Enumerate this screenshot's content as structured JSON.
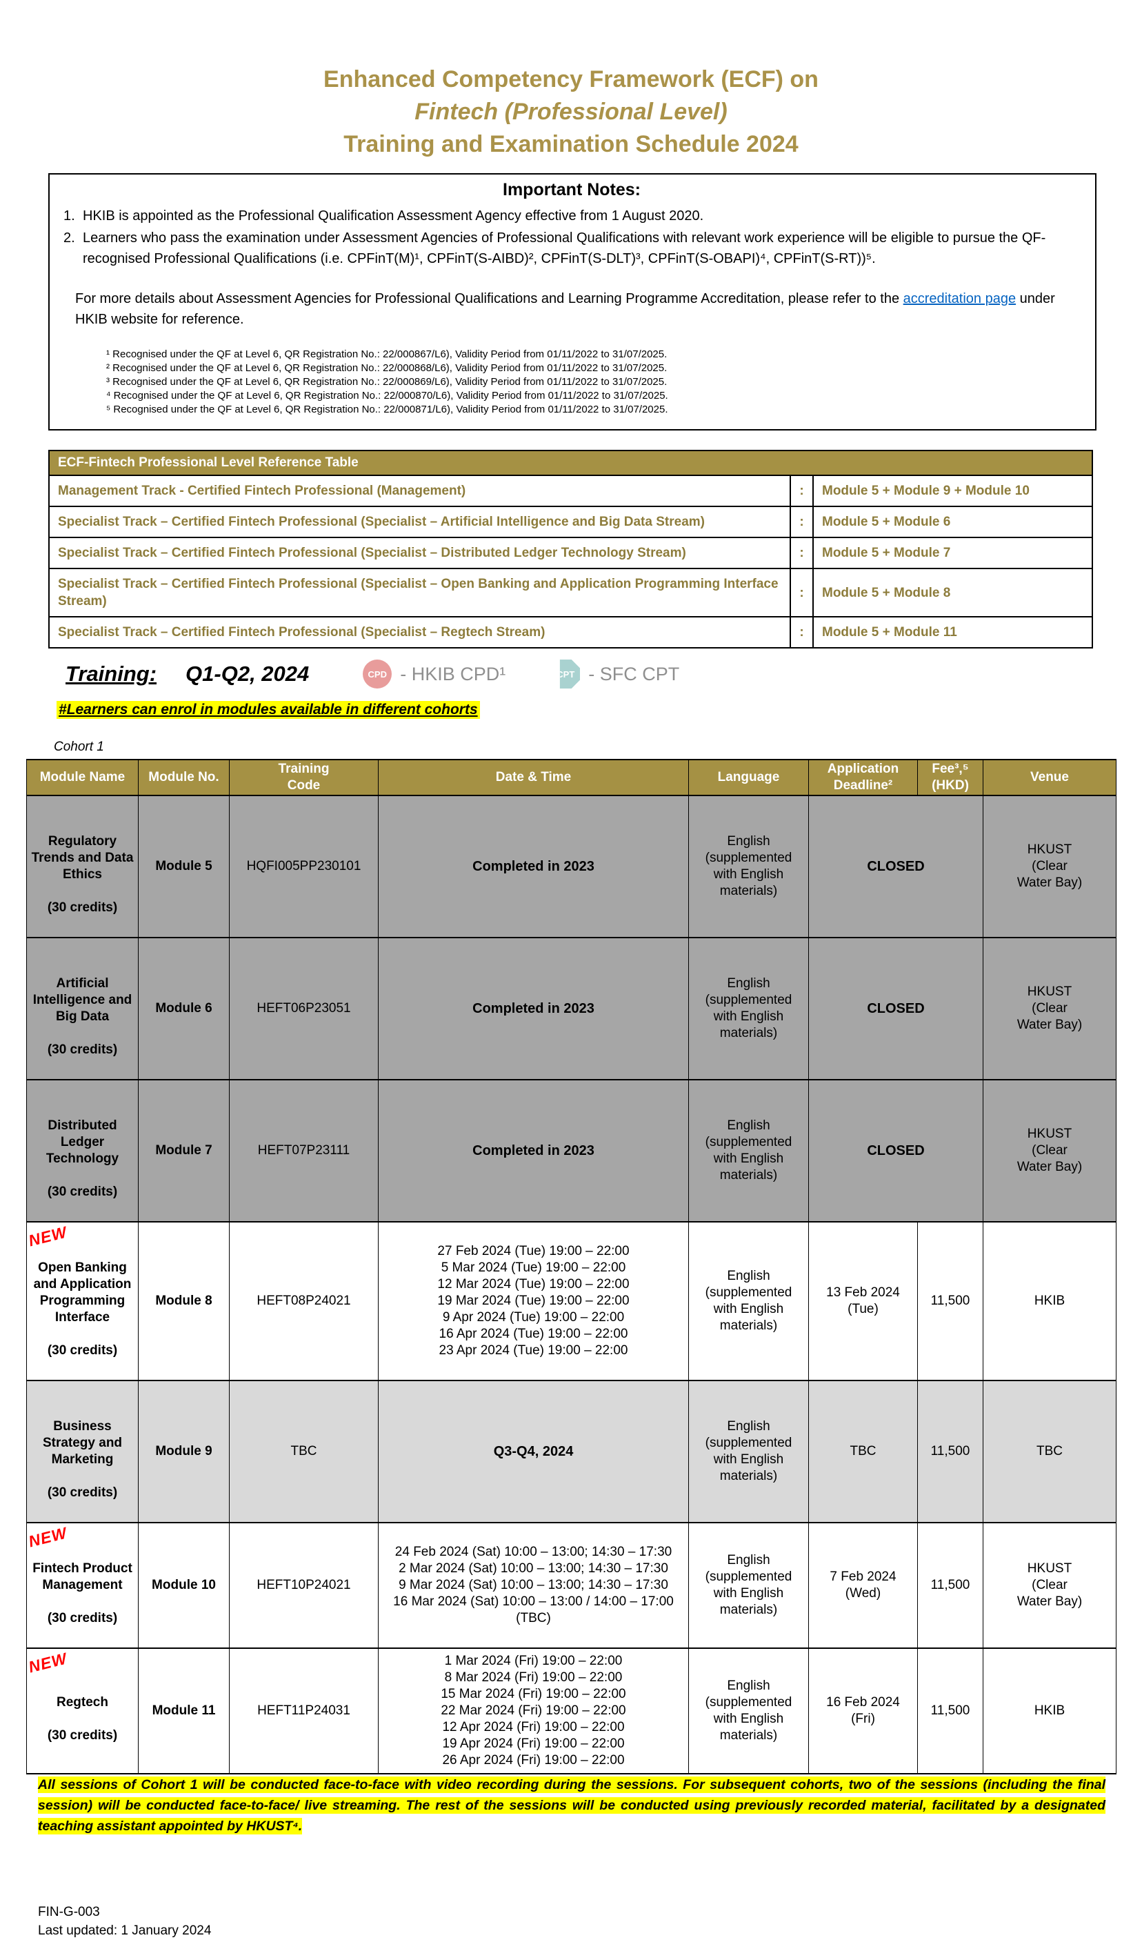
{
  "title": {
    "line1": "Enhanced Competency Framework (ECF) on",
    "line2": "Fintech (Professional Level)",
    "line3": "Training and Examination Schedule 2024"
  },
  "important_notes": {
    "heading": "Important Notes:",
    "items": [
      {
        "num": "1.",
        "text": "HKIB is appointed as the Professional Qualification Assessment Agency effective from 1 August 2020."
      },
      {
        "num": "2.",
        "text": "Learners who pass the examination under Assessment Agencies of Professional Qualifications with relevant work experience will be eligible to pursue the QF-recognised Professional Qualifications (i.e. CPFinT(M)¹, CPFinT(S-AIBD)², CPFinT(S-DLT)³, CPFinT(S-OBAPI)⁴, CPFinT(S-RT))⁵."
      }
    ],
    "more_prefix": "For more details about Assessment Agencies for Professional Qualifications and Learning Programme Accreditation, please refer to the",
    "link_text": "accreditation page",
    "more_suffix": " under HKIB website for reference.",
    "footnotes": [
      {
        "text": "¹ Recognised under the QF at Level 6, QR Registration No.: 22/000867/L6), Validity Period from 01/11/2022 to 31/07/2025."
      },
      {
        "text": "² Recognised under the QF at Level 6, QR Registration No.: 22/000868/L6), Validity Period from 01/11/2022 to 31/07/2025."
      },
      {
        "text": "³ Recognised under the QF at Level 6, QR Registration No.: 22/000869/L6), Validity Period from 01/11/2022 to 31/07/2025."
      },
      {
        "text": "⁴ Recognised under the QF at Level 6, QR Registration No.: 22/000870/L6), Validity Period from 01/11/2022 to 31/07/2025."
      },
      {
        "text": "⁵ Recognised under the QF at Level 6, QR Registration No.: 22/000871/L6), Validity Period from 01/11/2022 to 31/07/2025."
      }
    ]
  },
  "reference_table": {
    "header": "ECF-Fintech Professional Level Reference Table",
    "rows": [
      {
        "track": "Management Track - Certified Fintech Professional (Management)",
        "colon": ":",
        "modules": "Module 5 + Module 9 + Module 10"
      },
      {
        "track": "Specialist Track – Certified Fintech Professional (Specialist – Artificial Intelligence and Big Data Stream)",
        "colon": ":",
        "modules": "Module 5 + Module 6"
      },
      {
        "track": "Specialist Track – Certified Fintech Professional (Specialist – Distributed Ledger Technology Stream)",
        "colon": ":",
        "modules": "Module 5 + Module 7"
      },
      {
        "track": "Specialist Track – Certified Fintech Professional (Specialist – Open Banking and Application Programming Interface Stream)",
        "colon": ":",
        "modules": "Module 5 + Module 8"
      },
      {
        "track": "Specialist Track – Certified Fintech Professional (Specialist – Regtech Stream)",
        "colon": ":",
        "modules": "Module 5 + Module 11"
      }
    ]
  },
  "training_section": {
    "heading": "Training:",
    "period": "Q1-Q2, 2024",
    "cpd_badge": "CPD",
    "cpd_label": "- HKIB CPD¹",
    "cpt_badge": "CPT",
    "cpt_label": "- SFC CPT",
    "enrol_note": "#Learners can enrol in modules available in different cohorts",
    "cohort_label": "Cohort 1"
  },
  "cohort_table": {
    "columns": [
      {
        "label": "Module Name"
      },
      {
        "label": "Module No."
      },
      {
        "label": "Training\nCode"
      },
      {
        "label": "Date & Time"
      },
      {
        "label": "Language"
      },
      {
        "label": "Application\nDeadline²"
      },
      {
        "label": "Fee³,⁵\n(HKD)"
      },
      {
        "label": "Venue"
      }
    ],
    "rows": [
      {
        "row_class": "row-gray h-r1",
        "is_new": false,
        "name": "Regulatory\nTrends and Data\nEthics",
        "credits": "(30 credits)",
        "module_no": "Module 5",
        "code": "HQFI005PP230101",
        "schedule": "Completed in 2023",
        "schedule_bold": true,
        "language": "English\n(supplemented\nwith English\nmaterials)",
        "deadline": "CLOSED",
        "deadline_bold": true,
        "deadline_span": "2",
        "has_fee": false,
        "venue": "HKUST\n(Clear\nWater Bay)"
      },
      {
        "row_class": "row-gray h-r2",
        "is_new": false,
        "name": "Artificial\nIntelligence and\nBig Data",
        "credits": "(30 credits)",
        "module_no": "Module 6",
        "code": "HEFT06P23051",
        "schedule": "Completed in 2023",
        "schedule_bold": true,
        "language": "English\n(supplemented\nwith English\nmaterials)",
        "deadline": "CLOSED",
        "deadline_bold": true,
        "deadline_span": "2",
        "has_fee": false,
        "venue": "HKUST\n(Clear\nWater Bay)"
      },
      {
        "row_class": "row-gray h-r3",
        "is_new": false,
        "name": "Distributed\nLedger\nTechnology",
        "credits": "(30 credits)",
        "module_no": "Module 7",
        "code": "HEFT07P23111",
        "schedule": "Completed in 2023",
        "schedule_bold": true,
        "language": "English\n(supplemented\nwith English\nmaterials)",
        "deadline": "CLOSED",
        "deadline_bold": true,
        "deadline_span": "2",
        "has_fee": false,
        "venue": "HKUST\n(Clear\nWater Bay)"
      },
      {
        "row_class": "h-r4",
        "is_new": true,
        "new_label": "NEW",
        "name": "Open Banking\nand Application\nProgramming\nInterface",
        "credits": "(30 credits)",
        "module_no": "Module 8",
        "code": "HEFT08P24021",
        "schedule": [
          "27 Feb 2024 (Tue) 19:00 – 22:00",
          "5 Mar 2024 (Tue) 19:00 – 22:00",
          "12 Mar 2024 (Tue) 19:00 – 22:00",
          "19 Mar 2024 (Tue) 19:00 – 22:00",
          "9 Apr 2024 (Tue) 19:00 – 22:00",
          "16 Apr 2024 (Tue) 19:00 – 22:00",
          "23 Apr 2024 (Tue) 19:00 – 22:00"
        ],
        "language": "English\n(supplemented\nwith English\nmaterials)",
        "deadline": "13 Feb 2024\n(Tue)",
        "deadline_span": "1",
        "has_fee": true,
        "fee": "11,500",
        "venue": "HKIB"
      },
      {
        "row_class": "row-light h-r5",
        "is_new": false,
        "name": "Business\nStrategy and\nMarketing",
        "credits": "(30 credits)",
        "module_no": "Module 9",
        "code": "TBC",
        "schedule": "Q3-Q4, 2024",
        "schedule_bold": true,
        "language": "English\n(supplemented\nwith English\nmaterials)",
        "deadline": "TBC",
        "deadline_span": "1",
        "has_fee": true,
        "fee": "11,500",
        "venue": "TBC"
      },
      {
        "row_class": "h-r6",
        "is_new": true,
        "new_label": "NEW",
        "name": "Fintech Product\nManagement",
        "credits": "(30 credits)",
        "module_no": "Module 10",
        "code": "HEFT10P24021",
        "schedule": [
          "24 Feb 2024 (Sat) 10:00 – 13:00; 14:30 – 17:30",
          "2 Mar 2024 (Sat) 10:00 – 13:00; 14:30 – 17:30",
          "9 Mar 2024 (Sat) 10:00 – 13:00; 14:30 – 17:30",
          "16 Mar 2024 (Sat) 10:00 – 13:00 / 14:00 – 17:00",
          "(TBC)"
        ],
        "language": "English\n(supplemented\nwith English\nmaterials)",
        "deadline": "7 Feb 2024\n(Wed)",
        "deadline_span": "1",
        "has_fee": true,
        "fee": "11,500",
        "venue": "HKUST\n(Clear\nWater Bay)"
      },
      {
        "row_class": "h-r7",
        "is_new": true,
        "new_label": "NEW",
        "name": "Regtech",
        "credits": "(30 credits)",
        "module_no": "Module 11",
        "code": "HEFT11P24031",
        "schedule": [
          "1 Mar 2024 (Fri) 19:00 – 22:00",
          "8 Mar 2024 (Fri) 19:00 – 22:00",
          "15 Mar 2024 (Fri) 19:00 – 22:00",
          "22 Mar 2024 (Fri) 19:00 – 22:00",
          "12 Apr 2024 (Fri) 19:00 – 22:00",
          "19 Apr 2024 (Fri) 19:00 – 22:00",
          "26 Apr 2024 (Fri) 19:00 – 22:00"
        ],
        "language": "English\n(supplemented\nwith English\nmaterials)",
        "deadline": "16 Feb 2024\n(Fri)",
        "deadline_span": "1",
        "has_fee": true,
        "fee": "11,500",
        "venue": "HKIB"
      }
    ]
  },
  "closing_note": "All sessions of Cohort 1 will be conducted face-to-face with video recording during the sessions. For subsequent cohorts, two of the sessions (including the final session) will be conducted face-to-face/ live streaming. The rest of the sessions will be conducted using previously recorded material, facilitated by a designated teaching assistant appointed by HKUST⁴.",
  "footer": {
    "doc_code": "FIN-G-003",
    "last_updated": "Last updated: 1 January 2024"
  }
}
